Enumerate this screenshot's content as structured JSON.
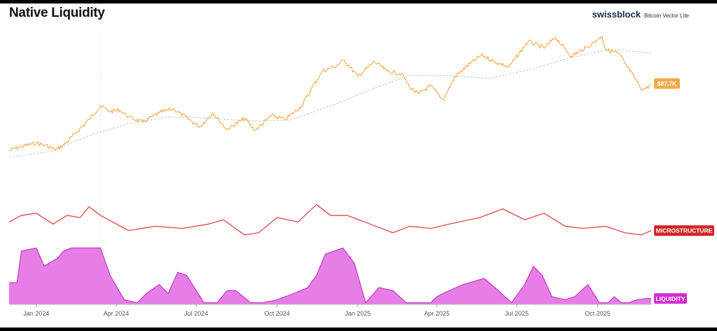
{
  "header": {
    "title": "Native Liquidity",
    "brand": "swissblock",
    "product": "Bitcoin Vector Lite"
  },
  "colors": {
    "price": "#f5a94a",
    "moving_average": "#cfcfcf",
    "microstructure": "#e04a4a",
    "microstructure_tag": "#d32626",
    "liquidity_fill": "#e77ee7",
    "liquidity_line": "#c13ac1",
    "liquidity_tag": "#d12fd1"
  },
  "chart_data": {
    "type": "line",
    "x_ticks": [
      "Jan 2024",
      "Apr 2024",
      "Jul 2024",
      "Oct 2024",
      "Jan 2025",
      "Apr 2025",
      "Jul 2025",
      "Oct 2025"
    ],
    "x_tick_dates": [
      "2024-01-01",
      "2024-04-01",
      "2024-07-01",
      "2024-10-01",
      "2025-01-01",
      "2025-04-01",
      "2025-07-01",
      "2025-10-01"
    ],
    "x_range": [
      "2023-12-01",
      "2025-12-01"
    ],
    "grid": false,
    "marker_date": "2024-03-14",
    "series": [
      {
        "panel": "price",
        "unit": "USD",
        "range": [
          38000,
          118000
        ],
        "x": [
          "2023-12-01",
          "2023-12-15",
          "2024-01-01",
          "2024-01-11",
          "2024-01-23",
          "2024-02-01",
          "2024-02-15",
          "2024-03-01",
          "2024-03-14",
          "2024-03-25",
          "2024-04-05",
          "2024-04-15",
          "2024-05-01",
          "2024-05-20",
          "2024-06-05",
          "2024-06-25",
          "2024-07-05",
          "2024-07-20",
          "2024-08-05",
          "2024-08-25",
          "2024-09-06",
          "2024-09-25",
          "2024-10-10",
          "2024-10-29",
          "2024-11-12",
          "2024-11-22",
          "2024-12-05",
          "2024-12-17",
          "2025-01-01",
          "2025-01-20",
          "2025-02-03",
          "2025-02-20",
          "2025-03-01",
          "2025-03-11",
          "2025-03-25",
          "2025-04-08",
          "2025-04-22",
          "2025-05-10",
          "2025-05-22",
          "2025-06-05",
          "2025-06-22",
          "2025-07-14",
          "2025-08-01",
          "2025-08-14",
          "2025-09-01",
          "2025-09-20",
          "2025-10-06",
          "2025-10-10",
          "2025-10-25",
          "2025-11-04",
          "2025-11-21",
          "2025-12-01"
        ],
        "values": [
          39000,
          42000,
          44500,
          43000,
          39500,
          43000,
          52000,
          62000,
          72000,
          68000,
          69000,
          64000,
          60000,
          67000,
          70000,
          61000,
          56500,
          67000,
          54500,
          63000,
          54000,
          65000,
          62000,
          72000,
          88000,
          98000,
          101000,
          106000,
          94000,
          105000,
          98000,
          96000,
          86000,
          81000,
          87000,
          76500,
          94000,
          104000,
          110000,
          105000,
          101000,
          120000,
          115000,
          123000,
          109000,
          116000,
          124000,
          114000,
          111000,
          101000,
          84000,
          87700
        ]
      },
      {
        "panel": "price",
        "unit": "USD",
        "range": [
          38000,
          118000
        ],
        "x": [
          "2023-12-01",
          "2024-01-15",
          "2024-03-01",
          "2024-04-15",
          "2024-06-01",
          "2024-07-15",
          "2024-09-01",
          "2024-10-15",
          "2024-12-01",
          "2025-01-15",
          "2025-03-01",
          "2025-04-15",
          "2025-06-01",
          "2025-07-15",
          "2025-09-01",
          "2025-10-15",
          "2025-12-01"
        ],
        "values": [
          34000,
          38000,
          50000,
          59000,
          64000,
          63000,
          61000,
          61500,
          72000,
          84000,
          95000,
          94500,
          92500,
          99000,
          108000,
          114000,
          111500
        ]
      },
      {
        "panel": "microstructure",
        "range": [
          0,
          1
        ],
        "x": [
          "2023-12-01",
          "2023-12-15",
          "2024-01-01",
          "2024-01-20",
          "2024-02-05",
          "2024-02-20",
          "2024-03-01",
          "2024-03-14",
          "2024-04-15",
          "2024-05-15",
          "2024-06-15",
          "2024-07-15",
          "2024-08-01",
          "2024-08-25",
          "2024-09-10",
          "2024-10-01",
          "2024-10-25",
          "2024-11-15",
          "2024-12-01",
          "2024-12-20",
          "2025-01-15",
          "2025-02-10",
          "2025-03-01",
          "2025-03-25",
          "2025-04-15",
          "2025-05-20",
          "2025-06-15",
          "2025-07-10",
          "2025-08-01",
          "2025-08-25",
          "2025-09-15",
          "2025-10-10",
          "2025-11-01",
          "2025-11-20",
          "2025-12-01"
        ],
        "values": [
          0.45,
          0.6,
          0.65,
          0.4,
          0.6,
          0.55,
          0.8,
          0.6,
          0.25,
          0.35,
          0.3,
          0.4,
          0.5,
          0.15,
          0.2,
          0.55,
          0.45,
          0.85,
          0.6,
          0.6,
          0.4,
          0.2,
          0.35,
          0.3,
          0.4,
          0.55,
          0.75,
          0.5,
          0.65,
          0.35,
          0.3,
          0.35,
          0.2,
          0.15,
          0.25
        ]
      },
      {
        "panel": "liquidity",
        "range": [
          0,
          1
        ],
        "x": [
          "2023-12-01",
          "2023-12-10",
          "2023-12-15",
          "2024-01-01",
          "2024-01-10",
          "2024-01-25",
          "2024-02-01",
          "2024-02-10",
          "2024-03-14",
          "2024-03-25",
          "2024-04-10",
          "2024-04-25",
          "2024-05-05",
          "2024-05-20",
          "2024-05-30",
          "2024-06-10",
          "2024-06-20",
          "2024-07-10",
          "2024-07-25",
          "2024-08-05",
          "2024-08-15",
          "2024-09-01",
          "2024-09-15",
          "2024-10-01",
          "2024-10-20",
          "2024-11-05",
          "2024-11-15",
          "2024-11-25",
          "2024-12-15",
          "2024-12-28",
          "2025-01-10",
          "2025-01-25",
          "2025-02-10",
          "2025-02-25",
          "2025-03-10",
          "2025-03-25",
          "2025-04-01",
          "2025-04-15",
          "2025-05-01",
          "2025-05-25",
          "2025-06-10",
          "2025-06-25",
          "2025-07-10",
          "2025-07-20",
          "2025-07-30",
          "2025-08-10",
          "2025-08-25",
          "2025-09-05",
          "2025-09-20",
          "2025-10-03",
          "2025-10-13",
          "2025-10-20",
          "2025-10-28",
          "2025-11-05",
          "2025-11-15",
          "2025-11-25",
          "2025-12-01"
        ],
        "values": [
          0.38,
          0.38,
          0.9,
          0.95,
          0.65,
          0.78,
          0.9,
          0.95,
          0.95,
          0.5,
          0.1,
          0.05,
          0.2,
          0.35,
          0.2,
          0.55,
          0.5,
          0.05,
          0.05,
          0.25,
          0.25,
          0.05,
          0.05,
          0.1,
          0.2,
          0.3,
          0.5,
          0.85,
          0.95,
          0.7,
          0.05,
          0.3,
          0.25,
          0.05,
          0.05,
          0.05,
          0.15,
          0.25,
          0.35,
          0.45,
          0.25,
          0.05,
          0.35,
          0.65,
          0.5,
          0.15,
          0.1,
          0.15,
          0.35,
          0.05,
          0.05,
          0.15,
          0.05,
          0.05,
          0.1,
          0.12,
          0.12
        ]
      }
    ],
    "labels": {
      "price_last": "$87.7K",
      "microstructure": "MICROSTRUCTURE",
      "liquidity": "LIQUIDITY"
    }
  }
}
